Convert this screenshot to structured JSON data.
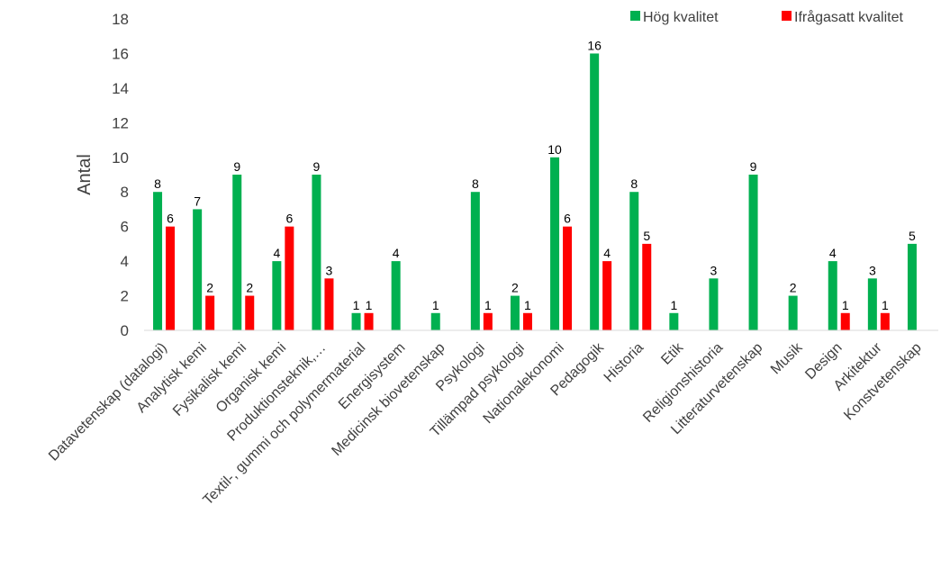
{
  "chart_data": {
    "type": "bar",
    "title": "",
    "xlabel": "",
    "ylabel": "Antal",
    "ylim": [
      0,
      18
    ],
    "yticks": [
      0,
      2,
      4,
      6,
      8,
      10,
      12,
      14,
      16,
      18
    ],
    "grid": false,
    "legend_position": "top-right",
    "categories": [
      "Datavetenskap (datalogi)",
      "Analytisk kemi",
      "Fysikalisk kemi",
      "Organisk kemi",
      "Produktionsteknik,…",
      "Textil-, gummi och polymermaterial",
      "Energisystem",
      "Medicinsk biovetenskap",
      "Psykologi",
      "Tillämpad psykologi",
      "Nationalekonomi",
      "Pedagogik",
      "Historia",
      "Etik",
      "Religionshistoria",
      "Litteraturvetenskap",
      "Musik",
      "Design",
      "Arkitektur",
      "Konstvetenskap"
    ],
    "series": [
      {
        "name": "Hög kvalitet",
        "color": "#00b050",
        "values": [
          8,
          7,
          9,
          4,
          9,
          1,
          4,
          1,
          8,
          2,
          10,
          16,
          8,
          1,
          3,
          9,
          2,
          4,
          3,
          5
        ]
      },
      {
        "name": "Ifrågasatt kvalitet",
        "color": "#ff0000",
        "values": [
          6,
          2,
          2,
          6,
          3,
          1,
          0,
          0,
          1,
          1,
          6,
          4,
          5,
          0,
          0,
          0,
          0,
          1,
          1,
          0
        ]
      }
    ]
  }
}
